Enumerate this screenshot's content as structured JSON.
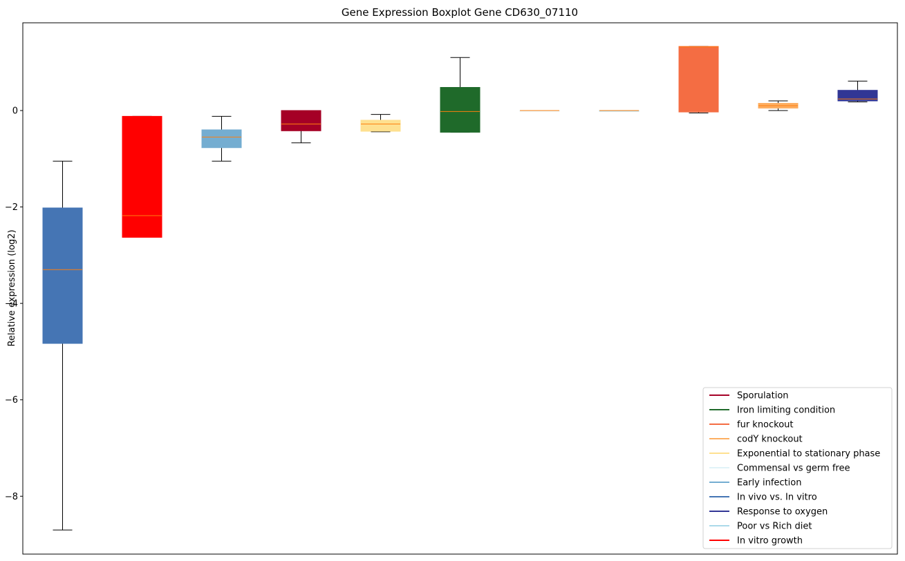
{
  "chart_data": {
    "type": "boxplot",
    "title": "Gene Expression Boxplot Gene CD630_07110",
    "xlabel": "",
    "ylabel": "Relative expression (log2)",
    "ylim": [
      -9.2,
      1.82
    ],
    "yticks": [
      0,
      -2,
      -4,
      -6,
      -8
    ],
    "ytick_labels": [
      "0",
      "−2",
      "−4",
      "−6",
      "−8"
    ],
    "grid": false,
    "legend_position": "lower-right",
    "boxes": [
      {
        "series": "In vivo vs. In vitro",
        "color": "#4575b4",
        "whisker_low": -8.7,
        "q1": -4.83,
        "median": -3.3,
        "q3": -2.02,
        "whisker_high": -1.05
      },
      {
        "series": "In vitro growth",
        "color": "#ff0000",
        "whisker_low": -2.63,
        "q1": -2.63,
        "median": -2.18,
        "q3": -0.12,
        "whisker_high": -0.12
      },
      {
        "series": "Early infection",
        "color": "#74add1",
        "whisker_low": -1.05,
        "q1": -0.77,
        "median": -0.55,
        "q3": -0.4,
        "whisker_high": -0.12
      },
      {
        "series": "Sporulation",
        "color": "#a50026",
        "whisker_low": -0.67,
        "q1": -0.42,
        "median": -0.28,
        "q3": 0.0,
        "whisker_high": 0.0
      },
      {
        "series": "Exponential to stationary phase",
        "color": "#fee090",
        "whisker_low": -0.44,
        "q1": -0.43,
        "median": -0.28,
        "q3": -0.2,
        "whisker_high": -0.08
      },
      {
        "series": "Iron limiting condition",
        "color": "#1f6a2a",
        "whisker_low": -0.45,
        "q1": -0.45,
        "median": -0.02,
        "q3": 0.48,
        "whisker_high": 1.1
      },
      {
        "series": "Commensal vs germ free",
        "color": "#e0f3f8",
        "whisker_low": 0.0,
        "q1": 0.0,
        "median": 0.0,
        "q3": 0.0,
        "whisker_high": 0.0
      },
      {
        "series": "Poor vs Rich diet",
        "color": "#abd9e9",
        "whisker_low": 0.0,
        "q1": 0.0,
        "median": 0.0,
        "q3": 0.0,
        "whisker_high": 0.0
      },
      {
        "series": "fur knockout",
        "color": "#f46d43",
        "whisker_low": -0.05,
        "q1": -0.03,
        "median": 1.32,
        "q3": 1.33,
        "whisker_high": 1.33
      },
      {
        "series": "codY knockout",
        "color": "#fdae61",
        "whisker_low": 0.0,
        "q1": 0.05,
        "median": 0.1,
        "q3": 0.15,
        "whisker_high": 0.2
      },
      {
        "series": "Response to oxygen",
        "color": "#313695",
        "whisker_low": 0.18,
        "q1": 0.2,
        "median": 0.24,
        "q3": 0.42,
        "whisker_high": 0.61
      }
    ],
    "median_color": "#ff7f0e",
    "legend": [
      {
        "label": "Sporulation",
        "color": "#a50026"
      },
      {
        "label": "Iron limiting condition",
        "color": "#1f6a2a"
      },
      {
        "label": "fur knockout",
        "color": "#f46d43"
      },
      {
        "label": "codY knockout",
        "color": "#fdae61"
      },
      {
        "label": "Exponential to stationary phase",
        "color": "#fee090"
      },
      {
        "label": "Commensal vs germ free",
        "color": "#e0f3f8"
      },
      {
        "label": "Early infection",
        "color": "#74add1"
      },
      {
        "label": "In vivo vs. In vitro",
        "color": "#4575b4"
      },
      {
        "label": "Response to oxygen",
        "color": "#313695"
      },
      {
        "label": "Poor vs Rich diet",
        "color": "#abd9e9"
      },
      {
        "label": "In vitro growth",
        "color": "#ff0000"
      }
    ]
  }
}
